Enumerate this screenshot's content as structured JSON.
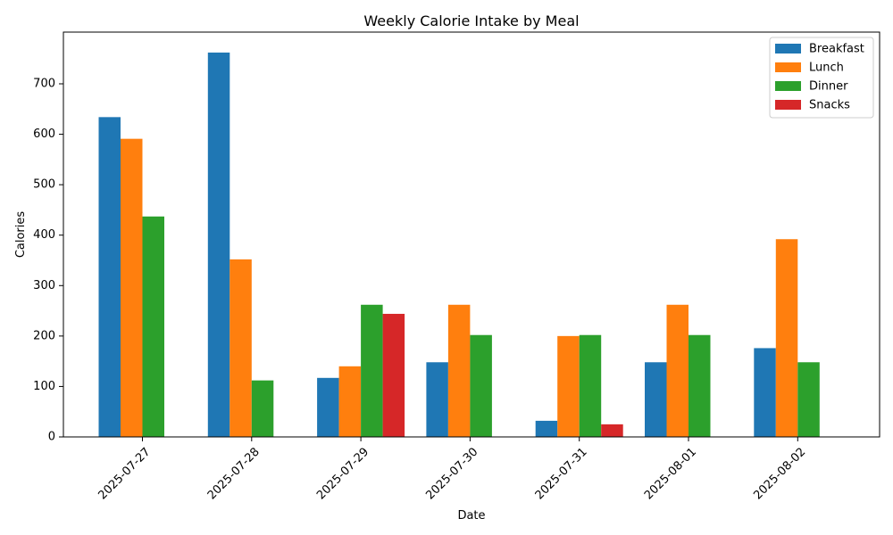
{
  "chart_data": {
    "type": "bar",
    "title": "Weekly Calorie Intake by Meal",
    "xlabel": "Date",
    "ylabel": "Calories",
    "categories": [
      "2025-07-27",
      "2025-07-28",
      "2025-07-29",
      "2025-07-30",
      "2025-07-31",
      "2025-08-01",
      "2025-08-02"
    ],
    "series": [
      {
        "name": "Breakfast",
        "color": "#1f77b4",
        "values": [
          634,
          762,
          117,
          148,
          32,
          148,
          176
        ]
      },
      {
        "name": "Lunch",
        "color": "#ff7f0e",
        "values": [
          591,
          352,
          140,
          262,
          200,
          262,
          392
        ]
      },
      {
        "name": "Dinner",
        "color": "#2ca02c",
        "values": [
          437,
          112,
          262,
          202,
          202,
          202,
          148
        ]
      },
      {
        "name": "Snacks",
        "color": "#d62728",
        "values": [
          0,
          0,
          244,
          0,
          25,
          0,
          0
        ]
      }
    ],
    "ylim": [
      0,
      800
    ],
    "yticks": [
      0,
      100,
      200,
      300,
      400,
      500,
      600,
      700
    ],
    "legend_position": "top-right",
    "grid": false
  }
}
